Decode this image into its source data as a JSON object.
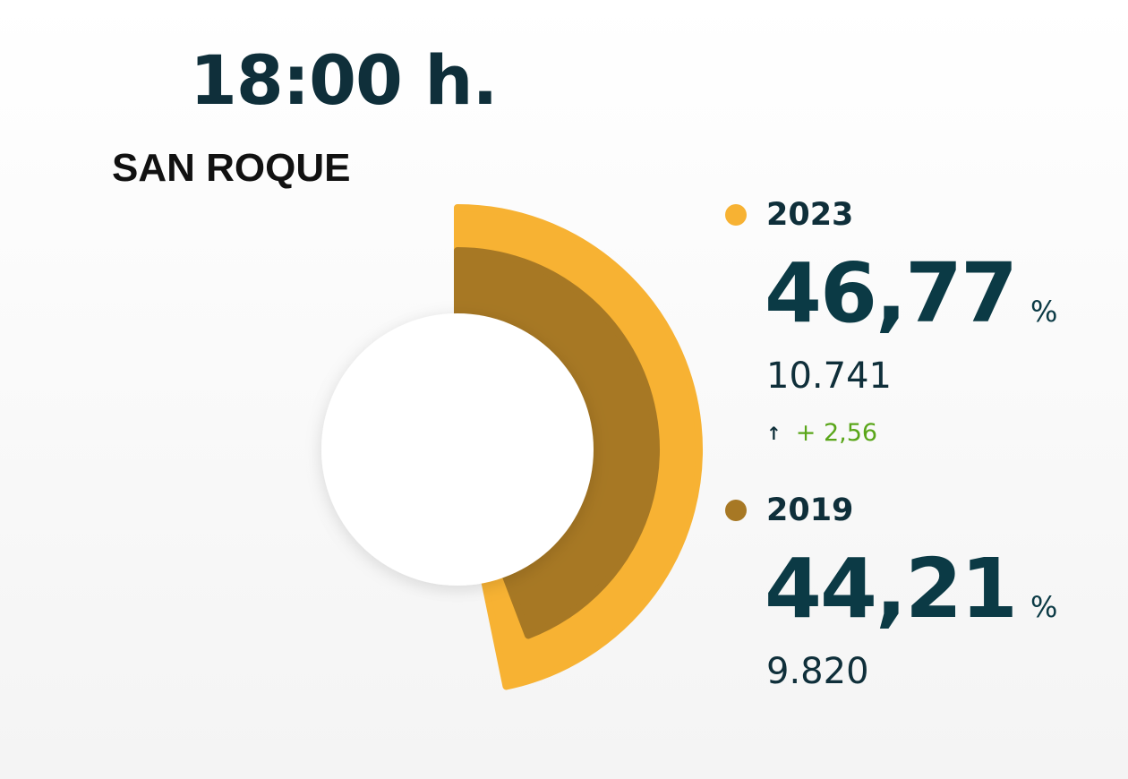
{
  "header": {
    "time": "18:00 h.",
    "place": "SAN ROQUE"
  },
  "colors": {
    "series_2023": "#f7b233",
    "series_2019": "#a77824",
    "text_dark": "#0b3a45",
    "diff_positive": "#5aa61a"
  },
  "series": [
    {
      "year": "2023",
      "percent": "46,77",
      "percent_sign": "%",
      "votes": "10.741",
      "diff_arrow": "↑",
      "diff": "+ 2,56"
    },
    {
      "year": "2019",
      "percent": "44,21",
      "percent_sign": "%",
      "votes": "9.820"
    }
  ],
  "chart_data": {
    "type": "radial-bar",
    "title": "",
    "series": [
      {
        "name": "2023",
        "value": 46.77
      },
      {
        "name": "2019",
        "value": 44.21
      }
    ],
    "max": 100
  }
}
